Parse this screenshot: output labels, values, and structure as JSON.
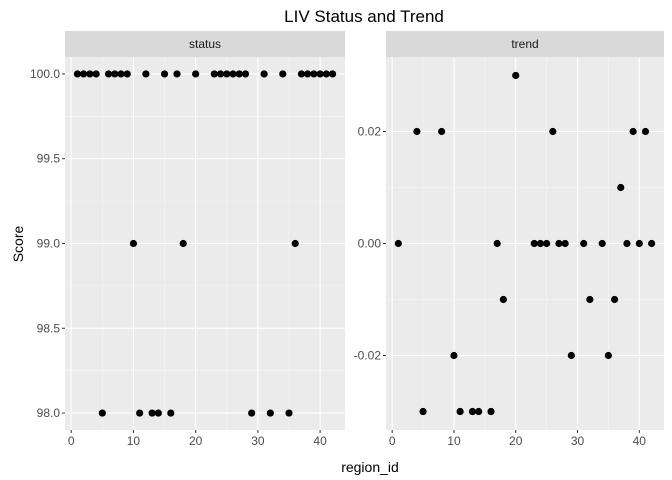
{
  "chart_data": {
    "type": "scatter",
    "title": "LIV Status and Trend",
    "xlabel": "region_id",
    "ylabel": "Score",
    "grid": true,
    "panels": [
      {
        "name": "status",
        "xlim": [
          -1,
          44
        ],
        "ylim": [
          97.9,
          100.1
        ],
        "x_ticks": [
          0,
          10,
          20,
          30,
          40
        ],
        "x_tick_labels": [
          "0",
          "10",
          "20",
          "30",
          "40"
        ],
        "y_ticks": [
          98.0,
          98.5,
          99.0,
          99.5,
          100.0
        ],
        "y_tick_labels": [
          "98.0",
          "98.5",
          "99.0",
          "99.5",
          "100.0"
        ],
        "x": [
          1,
          2,
          3,
          4,
          5,
          6,
          7,
          8,
          9,
          10,
          11,
          12,
          13,
          14,
          15,
          16,
          17,
          18,
          20,
          23,
          24,
          25,
          26,
          27,
          28,
          29,
          31,
          32,
          34,
          35,
          36,
          37,
          38,
          39,
          40,
          41,
          42
        ],
        "y": [
          100,
          100,
          100,
          100,
          98,
          100,
          100,
          100,
          100,
          99,
          98,
          100,
          98,
          98,
          100,
          98,
          100,
          99,
          100,
          100,
          100,
          100,
          100,
          100,
          100,
          98,
          100,
          98,
          100,
          98,
          99,
          100,
          100,
          100,
          100,
          100,
          100
        ]
      },
      {
        "name": "trend",
        "xlim": [
          -1,
          44
        ],
        "ylim": [
          -0.0333,
          0.0333
        ],
        "x_ticks": [
          0,
          10,
          20,
          30,
          40
        ],
        "x_tick_labels": [
          "0",
          "10",
          "20",
          "30",
          "40"
        ],
        "y_ticks": [
          -0.02,
          0.0,
          0.02
        ],
        "y_tick_labels": [
          "-0.02",
          "0.00",
          "0.02"
        ],
        "x": [
          1,
          4,
          5,
          8,
          10,
          11,
          13,
          14,
          16,
          17,
          18,
          20,
          23,
          24,
          25,
          26,
          27,
          28,
          29,
          31,
          32,
          34,
          35,
          36,
          37,
          38,
          39,
          40,
          41,
          42
        ],
        "y": [
          0,
          0.02,
          -0.03,
          0.02,
          -0.02,
          -0.03,
          -0.03,
          -0.03,
          -0.03,
          0,
          -0.01,
          0.03,
          0,
          0,
          0,
          0.02,
          0,
          0,
          -0.02,
          0,
          -0.01,
          0,
          -0.02,
          -0.01,
          0.01,
          0,
          0.02,
          0,
          0.02,
          0
        ]
      }
    ],
    "colors": {
      "panel_bg": "#ebebeb",
      "strip_bg": "#d9d9d9",
      "grid_major": "#ffffff",
      "point": "#000000"
    }
  }
}
